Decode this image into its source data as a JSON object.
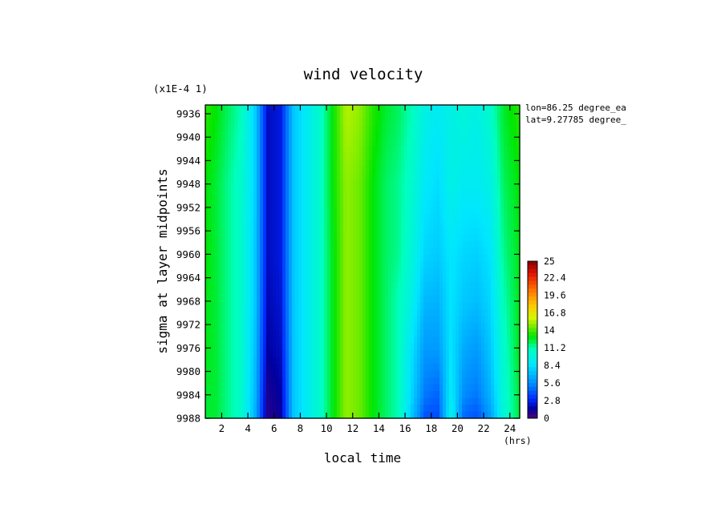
{
  "chart_data": {
    "type": "heatmap",
    "title": "wind velocity",
    "xlabel": "local time",
    "xunit": "(hrs)",
    "ylabel": "sigma at layer midpoints",
    "yscale_label": "(x1E-4 1)",
    "annotations": [
      "lon=86.25 degree_ea",
      "lat=9.27785 degree_"
    ],
    "xlim": [
      0.75,
      24.75
    ],
    "ylim": [
      9934.5,
      9988
    ],
    "x_ticks": [
      2,
      4,
      6,
      8,
      10,
      12,
      14,
      16,
      18,
      20,
      22,
      24
    ],
    "y_ticks": [
      9936,
      9940,
      9944,
      9948,
      9952,
      9956,
      9960,
      9964,
      9968,
      9972,
      9976,
      9980,
      9984,
      9988
    ],
    "x": [
      0.75,
      1.5,
      2.5,
      3.5,
      4.5,
      5.5,
      6.5,
      7.5,
      8.5,
      9.5,
      10.5,
      11.5,
      12.5,
      13.5,
      14.5,
      15.5,
      16.5,
      17.5,
      18.5,
      19.5,
      20.5,
      21.5,
      22.5,
      23.5,
      24.75
    ],
    "y": [
      9936,
      9948,
      9960,
      9968,
      9976,
      9984,
      9988
    ],
    "z": [
      [
        13.5,
        13.0,
        12.0,
        11.0,
        8.0,
        2.0,
        2.5,
        7.5,
        9.0,
        10.5,
        13.0,
        15.5,
        15.0,
        13.5,
        12.5,
        12.0,
        11.0,
        9.5,
        9.0,
        9.5,
        10.0,
        9.5,
        10.5,
        12.5,
        13.5
      ],
      [
        13.0,
        12.5,
        11.5,
        10.5,
        8.0,
        2.0,
        2.5,
        7.5,
        9.0,
        10.5,
        13.0,
        15.0,
        14.5,
        13.0,
        12.0,
        11.5,
        10.5,
        8.8,
        8.2,
        9.5,
        9.0,
        9.0,
        9.5,
        12.0,
        13.0
      ],
      [
        13.0,
        12.5,
        11.5,
        10.5,
        7.8,
        2.0,
        2.5,
        7.5,
        9.0,
        10.5,
        12.8,
        15.0,
        14.5,
        13.0,
        12.0,
        11.5,
        10.0,
        8.0,
        7.6,
        8.6,
        8.0,
        7.8,
        8.5,
        11.5,
        12.8
      ],
      [
        12.8,
        12.5,
        11.5,
        10.5,
        7.8,
        1.8,
        2.3,
        7.5,
        9.0,
        10.5,
        12.8,
        15.0,
        14.5,
        13.0,
        12.0,
        11.0,
        9.5,
        7.0,
        6.8,
        8.5,
        7.5,
        7.2,
        8.0,
        11.0,
        12.8
      ],
      [
        12.8,
        12.5,
        11.5,
        10.5,
        7.5,
        1.5,
        2.0,
        7.5,
        9.0,
        10.5,
        12.8,
        15.0,
        14.5,
        13.0,
        12.0,
        11.0,
        8.5,
        6.0,
        6.0,
        8.5,
        6.5,
        6.0,
        7.5,
        10.5,
        12.8
      ],
      [
        12.5,
        12.5,
        11.5,
        10.5,
        7.2,
        1.0,
        1.5,
        7.5,
        9.0,
        10.5,
        12.8,
        15.0,
        14.5,
        13.0,
        12.0,
        11.0,
        8.0,
        5.0,
        4.5,
        9.0,
        5.5,
        5.0,
        6.8,
        10.2,
        12.5
      ],
      [
        12.5,
        12.5,
        11.5,
        10.5,
        7.0,
        0.8,
        1.3,
        7.5,
        9.0,
        10.5,
        12.8,
        15.0,
        14.5,
        13.0,
        12.0,
        11.0,
        7.5,
        4.0,
        3.8,
        9.5,
        4.5,
        4.0,
        6.0,
        10.0,
        12.5
      ]
    ],
    "colorbar": {
      "min": 0,
      "max": 25,
      "tick_labels": [
        "25",
        "22.4",
        "19.6",
        "16.8",
        "14",
        "11.2",
        "8.4",
        "5.6",
        "2.8",
        "0"
      ],
      "tick_values": [
        25,
        22.4,
        19.6,
        16.8,
        14,
        11.2,
        8.4,
        5.6,
        2.8,
        0
      ]
    },
    "grid": false,
    "legend_placement": "right"
  }
}
